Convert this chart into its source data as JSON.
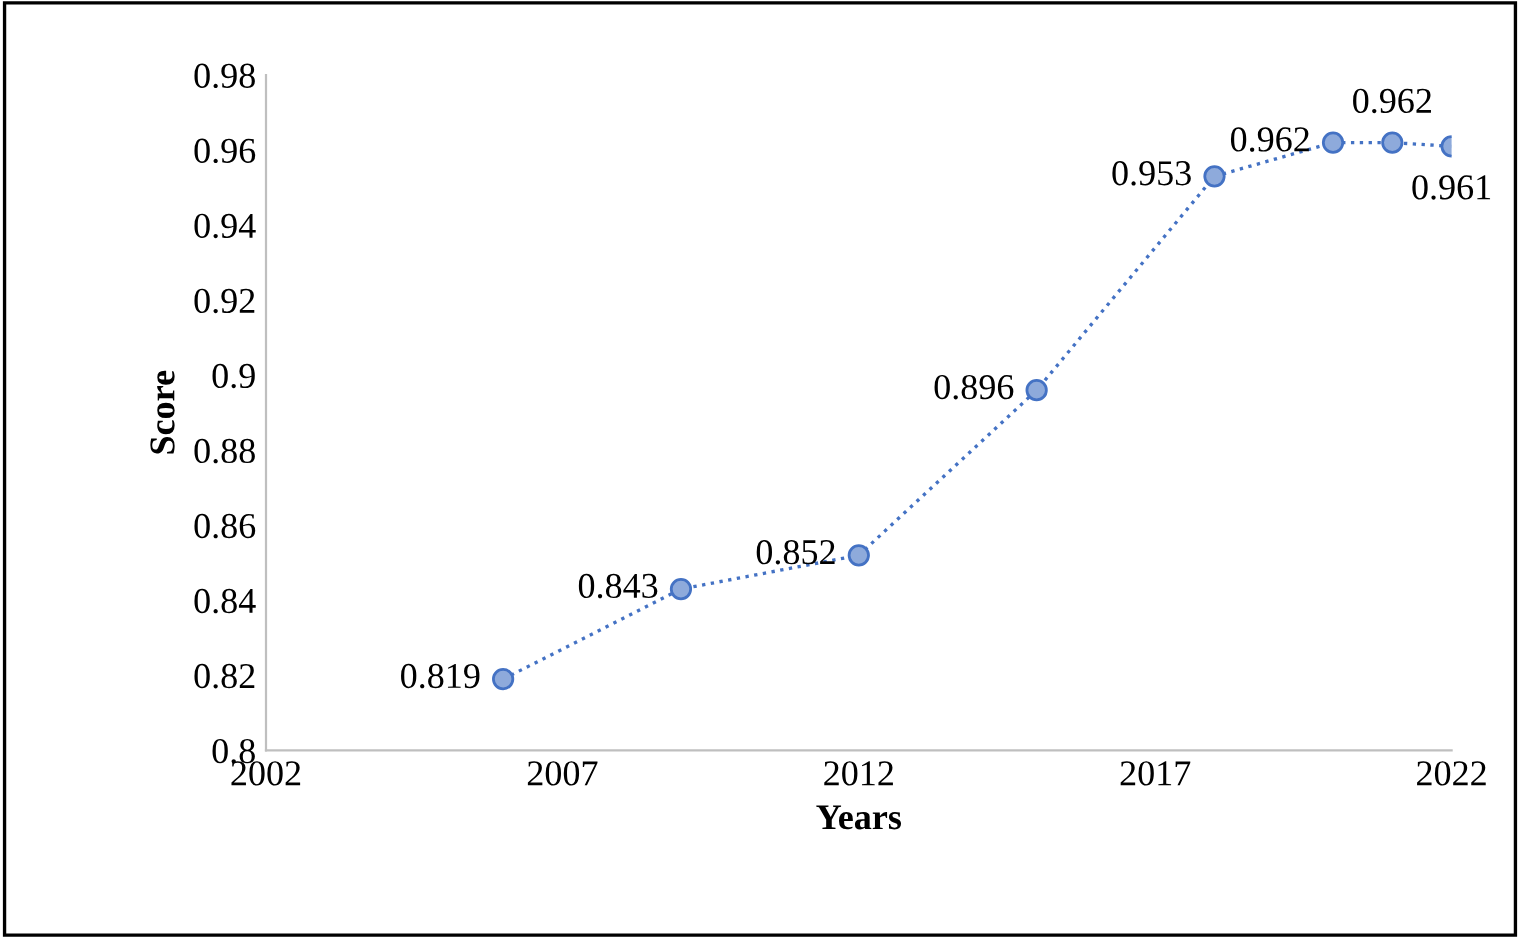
{
  "chart_data": {
    "type": "line",
    "xlabel": "Years",
    "ylabel": "Score",
    "x": [
      2006,
      2009,
      2012,
      2015,
      2018,
      2020,
      2021,
      2022
    ],
    "series": [
      {
        "color": "#4472c4",
        "values": [
          0.819,
          0.843,
          0.852,
          0.896,
          0.953,
          0.962,
          0.962,
          0.961
        ]
      }
    ],
    "xlim": [
      2002,
      2022
    ],
    "xticks": [
      2002,
      2007,
      2012,
      2017,
      2022
    ],
    "ylim": [
      0.8,
      0.98
    ],
    "yticks": [
      {
        "value": 0.8,
        "label": "0.8"
      },
      0.82,
      0.84,
      0.86,
      0.88,
      {
        "value": 0.9,
        "label": "0.9"
      },
      0.92,
      0.94,
      0.96,
      0.98
    ],
    "data_labels": true,
    "marker": "circle",
    "line_style": "dotted",
    "grid": false,
    "legend": false
  }
}
